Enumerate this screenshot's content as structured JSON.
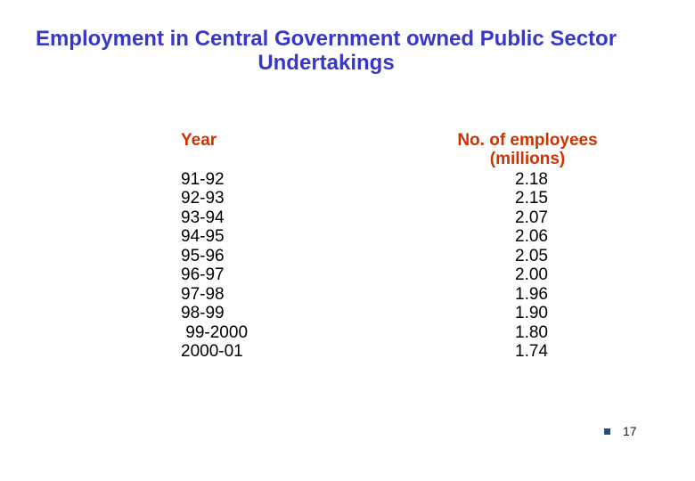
{
  "title": {
    "line1": "Employment in Central Government owned Public Sector",
    "line2": "Undertakings"
  },
  "table": {
    "year_header": "Year",
    "employees_header_line1": "No. of employees",
    "employees_header_line2": "(millions)",
    "rows": [
      {
        "year": "91-92",
        "employees": "2.18"
      },
      {
        "year": "92-93",
        "employees": "2.15"
      },
      {
        "year": "93-94",
        "employees": "2.07"
      },
      {
        "year": "94-95",
        "employees": "2.06"
      },
      {
        "year": "95-96",
        "employees": "2.05"
      },
      {
        "year": "96-97",
        "employees": "2.00"
      },
      {
        "year": "97-98",
        "employees": "1.96"
      },
      {
        "year": "98-99",
        "employees": "1.90"
      },
      {
        "year": " 99-2000",
        "employees": "1.80"
      },
      {
        "year": "2000-01",
        "employees": "1.74"
      }
    ]
  },
  "footer": {
    "page_number": "17"
  },
  "colors": {
    "title-text": "#3838C8",
    "header-text": "#CC3300",
    "body-text": "#000000",
    "bullet": "#2B4B7E",
    "background": "#FFFFFF",
    "page-number-text": "#1A1A1A"
  },
  "chart_data": {
    "type": "table",
    "title": "Employment in Central Government owned Public Sector Undertakings",
    "columns": [
      "Year",
      "No. of employees (millions)"
    ],
    "categories": [
      "91-92",
      "92-93",
      "93-94",
      "94-95",
      "95-96",
      "96-97",
      "97-98",
      "98-99",
      "99-2000",
      "2000-01"
    ],
    "values": [
      2.18,
      2.15,
      2.07,
      2.06,
      2.05,
      2.0,
      1.96,
      1.9,
      1.8,
      1.74
    ]
  }
}
